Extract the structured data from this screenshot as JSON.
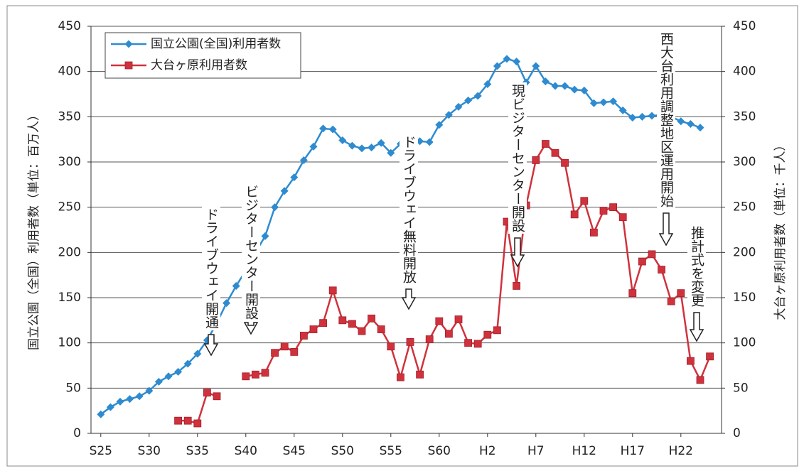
{
  "chart_data": {
    "type": "line",
    "categories": [
      "S25",
      null,
      null,
      null,
      null,
      "S30",
      null,
      null,
      null,
      null,
      "S35",
      null,
      null,
      null,
      null,
      "S40",
      null,
      null,
      null,
      null,
      "S45",
      null,
      null,
      null,
      null,
      "S50",
      null,
      null,
      null,
      null,
      "S55",
      null,
      null,
      null,
      null,
      "S60",
      null,
      null,
      null,
      null,
      "H2",
      null,
      null,
      null,
      null,
      "H7",
      null,
      null,
      null,
      null,
      "H12",
      null,
      null,
      null,
      null,
      "H17",
      null,
      null,
      null,
      null,
      "H22",
      null,
      null,
      null,
      null
    ],
    "y_label": "国立公園（全国）利用者数（単位：百万人）",
    "y2_label": "大台ヶ原利用者数（単位：千人）",
    "ylim": [
      0,
      450
    ],
    "yticks": [
      0,
      50,
      100,
      150,
      200,
      250,
      300,
      350,
      400,
      450
    ],
    "y2lim": [
      0,
      450
    ],
    "y2ticks": [
      0,
      50,
      100,
      150,
      200,
      250,
      300,
      350,
      400,
      450
    ],
    "grid": true,
    "legend": "upper left",
    "series": [
      {
        "name": "国立公園(全国)利用者数",
        "color": "#2e8bd0",
        "marker": "diamond",
        "values": [
          21,
          29,
          35,
          38,
          41,
          47,
          57,
          63,
          68,
          77,
          88,
          103,
          122,
          144,
          163,
          180,
          200,
          218,
          250,
          268,
          283,
          302,
          317,
          337,
          336,
          324,
          318,
          315,
          316,
          321,
          310,
          320,
          322,
          323,
          322,
          341,
          352,
          361,
          368,
          373,
          386,
          406,
          414,
          411,
          388,
          406,
          389,
          384,
          384,
          380,
          379,
          365,
          366,
          367,
          357,
          349,
          350,
          351,
          352,
          350,
          345,
          342,
          338,
          null,
          null
        ]
      },
      {
        "name": "大台ヶ原利用者数",
        "color": "#d0323c",
        "marker": "square",
        "axis": "y2",
        "values": [
          null,
          null,
          null,
          null,
          null,
          null,
          null,
          null,
          14,
          14,
          11,
          45,
          41,
          null,
          null,
          63,
          65,
          67,
          89,
          96,
          90,
          108,
          115,
          122,
          158,
          125,
          121,
          113,
          127,
          115,
          96,
          62,
          101,
          65,
          104,
          124,
          110,
          126,
          100,
          99,
          109,
          114,
          234,
          163,
          252,
          302,
          320,
          310,
          299,
          242,
          257,
          222,
          246,
          250,
          239,
          155,
          190,
          198,
          181,
          146,
          155,
          80,
          59,
          85,
          null
        ]
      }
    ],
    "annotations": [
      "ドライブウェイ開通",
      "ビジターセンター開設",
      "ドライブウェイ無料開放",
      "現ビジターセンター開設",
      "西大台利用調整地区運用開始",
      "推計式を変更"
    ]
  }
}
